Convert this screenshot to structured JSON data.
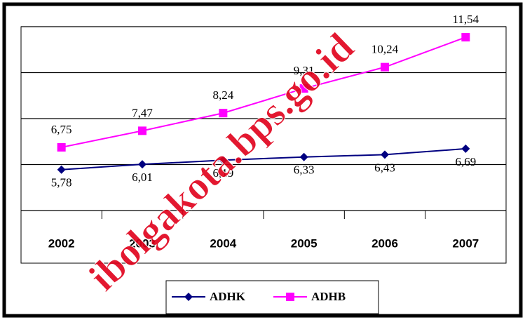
{
  "chart_data": {
    "type": "line",
    "categories": [
      "2002",
      "2003",
      "2004",
      "2005",
      "2006",
      "2007"
    ],
    "series": [
      {
        "name": "ADHK",
        "color": "#000080",
        "marker": "diamond",
        "values": [
          5.78,
          6.01,
          6.19,
          6.33,
          6.43,
          6.69
        ],
        "value_labels": [
          "5,78",
          "6,01",
          "6,19",
          "6,33",
          "6,43",
          "6,69"
        ]
      },
      {
        "name": "ADHB",
        "color": "#ff00ff",
        "marker": "square",
        "values": [
          6.75,
          7.47,
          8.24,
          9.31,
          10.24,
          11.54
        ],
        "value_labels": [
          "6,75",
          "7,47",
          "8,24",
          "9,31",
          "10,24",
          "11,54"
        ]
      }
    ],
    "ylim": [
      4,
      12
    ],
    "yticks": [
      4,
      6,
      8,
      10,
      12
    ],
    "grid": true,
    "legend": "bottom",
    "watermark": "ibolgakota.bps.go.id"
  }
}
